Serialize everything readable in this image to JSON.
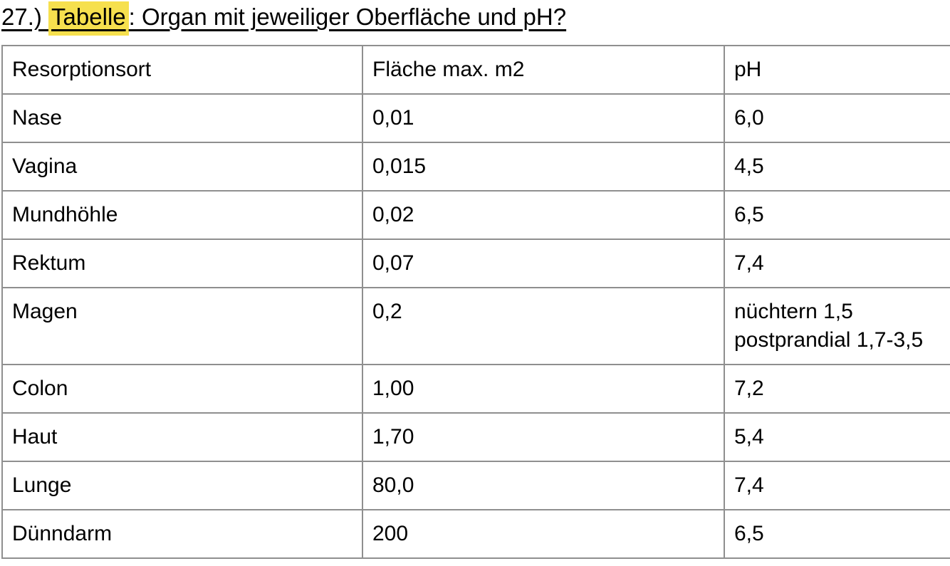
{
  "heading": {
    "number_prefix": "27.) ",
    "highlighted_word": "Tabelle",
    "rest": ": Organ mit jeweiliger Oberfläche und pH?"
  },
  "colors": {
    "highlight": "#f6e04e",
    "table_border": "#8f8f8f",
    "text": "#000000",
    "background": "#ffffff"
  },
  "table": {
    "headers": [
      "Resorptionsort",
      "Fläche max. m2",
      "pH"
    ],
    "rows": [
      [
        "Nase",
        "0,01",
        "6,0"
      ],
      [
        "Vagina",
        "0,015",
        "4,5"
      ],
      [
        "Mundhöhle",
        "0,02",
        "6,5"
      ],
      [
        "Rektum",
        "0,07",
        "7,4"
      ],
      [
        "Magen",
        "0,2",
        "nüchtern 1,5\npostprandial 1,7-3,5"
      ],
      [
        "Colon",
        "1,00",
        "7,2"
      ],
      [
        "Haut",
        "1,70",
        "5,4"
      ],
      [
        "Lunge",
        "80,0",
        "7,4"
      ],
      [
        "Dünndarm",
        "200",
        "6,5"
      ]
    ]
  }
}
